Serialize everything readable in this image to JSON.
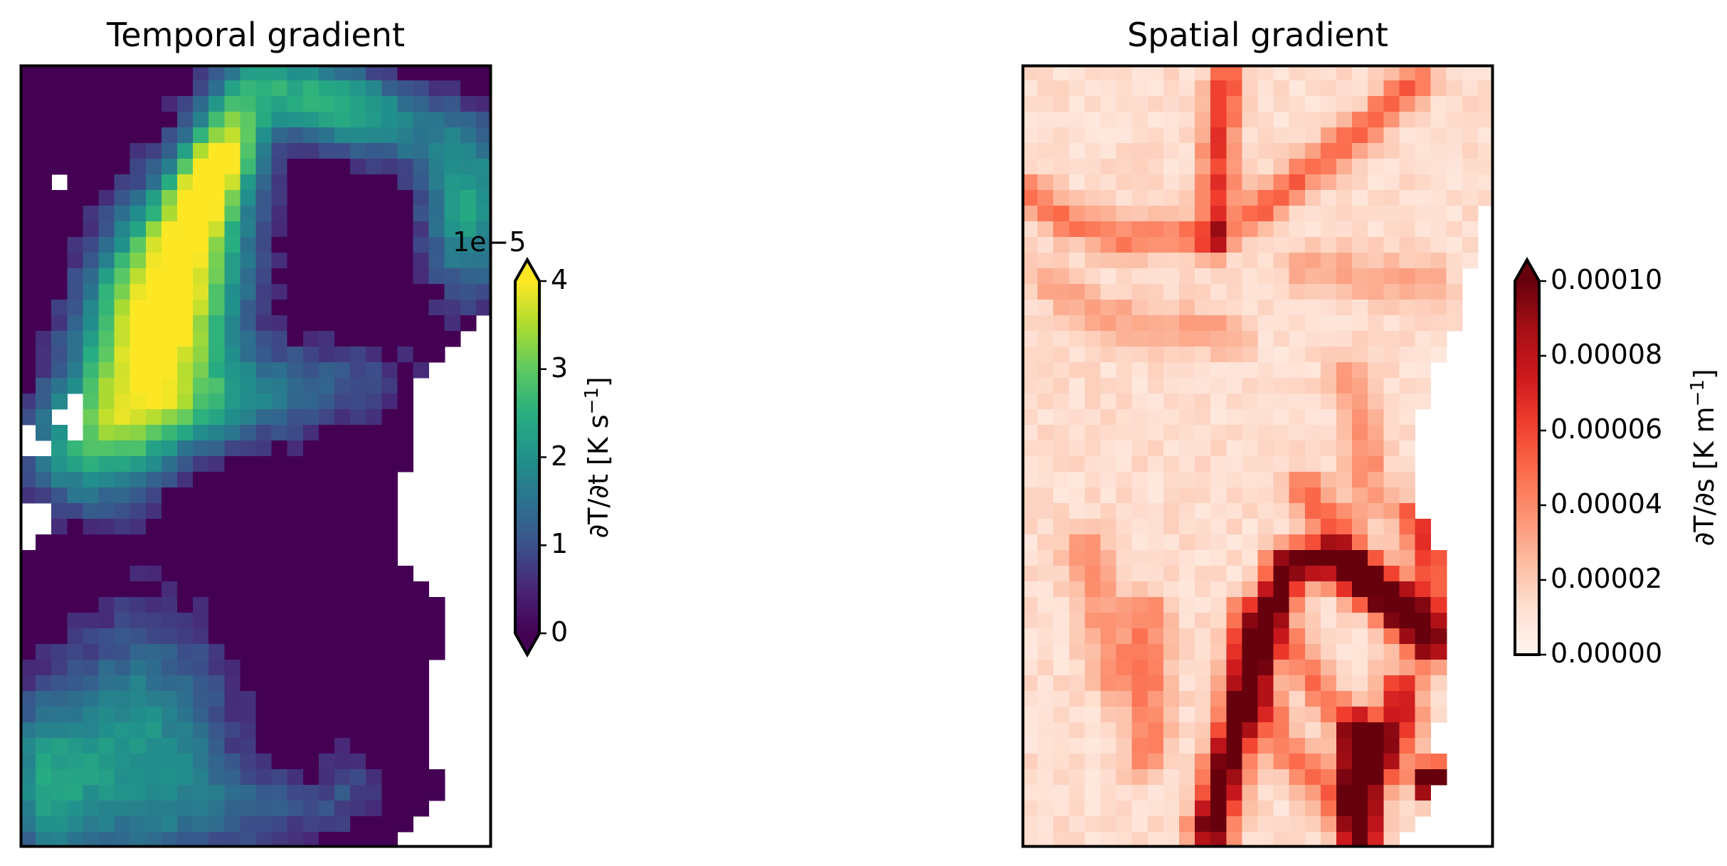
{
  "chart_data": [
    {
      "type": "heatmap",
      "title": "Temporal gradient",
      "colormap": "viridis",
      "grid": false,
      "colorbar": {
        "label_pre": "∂T/∂t [K s",
        "label_sup": "−1",
        "label_post": "]",
        "offset_text": "1e−5",
        "range": [
          0,
          4
        ],
        "ticks": [
          0,
          1,
          2,
          3,
          4
        ],
        "tick_labels": [
          "0",
          "1",
          "2",
          "3",
          "4"
        ],
        "extend": "both"
      },
      "grid_shape": [
        50,
        30
      ],
      "blobs": [
        {
          "x": 9.0,
          "y": 15.5,
          "sx": 3.2,
          "sy": 6.0,
          "amp": 4.6,
          "rot": -0.35
        },
        {
          "x": 12.5,
          "y": 6.5,
          "sx": 1.6,
          "sy": 3.5,
          "amp": 3.3,
          "rot": -0.4
        },
        {
          "x": 20.0,
          "y": 2.5,
          "sx": 5.0,
          "sy": 2.0,
          "amp": 2.6,
          "rot": -0.3
        },
        {
          "x": 28.5,
          "y": 9.5,
          "sx": 2.2,
          "sy": 4.0,
          "amp": 2.2,
          "rot": 0.0
        },
        {
          "x": 13.0,
          "y": 21.5,
          "sx": 8.0,
          "sy": 2.3,
          "amp": 1.7,
          "rot": 0.15
        },
        {
          "x": 4.0,
          "y": 25.5,
          "sx": 3.0,
          "sy": 2.5,
          "amp": 1.2,
          "rot": 0.0
        },
        {
          "x": 8.0,
          "y": 43.5,
          "sx": 4.0,
          "sy": 6.0,
          "amp": 2.0,
          "rot": 0.0
        },
        {
          "x": 1.5,
          "y": 46.0,
          "sx": 2.5,
          "sy": 4.0,
          "amp": 1.8,
          "rot": 0.0
        },
        {
          "x": 16.0,
          "y": 47.5,
          "sx": 4.5,
          "sy": 2.0,
          "amp": 0.9,
          "rot": 0.0
        },
        {
          "x": 21.0,
          "y": 45.5,
          "sx": 1.5,
          "sy": 2.0,
          "amp": 0.6,
          "rot": 0.0
        }
      ],
      "nan_right_edge": [
        30,
        30,
        30,
        30,
        30,
        30,
        30,
        30,
        30,
        30,
        30,
        30,
        30,
        30,
        30,
        30,
        29,
        28,
        27,
        26,
        25,
        25,
        25,
        25,
        25,
        25,
        24,
        24,
        24,
        24,
        24,
        24,
        25,
        26,
        27,
        27,
        27,
        27,
        26,
        26,
        26,
        26,
        26,
        26,
        26,
        27,
        27,
        26,
        25,
        24
      ],
      "nan_cells": [
        [
          7,
          2
        ],
        [
          21,
          3
        ],
        [
          22,
          3
        ],
        [
          23,
          3
        ],
        [
          22,
          2
        ],
        [
          24,
          1
        ],
        [
          24,
          0
        ],
        [
          23,
          0
        ],
        [
          28,
          1
        ],
        [
          28,
          0
        ],
        [
          29,
          0
        ],
        [
          30,
          0
        ],
        [
          29,
          1
        ]
      ]
    },
    {
      "type": "heatmap",
      "title": "Spatial gradient",
      "colormap": "Reds",
      "grid": false,
      "colorbar": {
        "label_pre": "∂T/∂s [K m",
        "label_sup": "−1",
        "label_post": "]",
        "range": [
          0,
          0.0001
        ],
        "ticks": [
          0,
          2e-05,
          4e-05,
          6e-05,
          8e-05,
          0.0001
        ],
        "tick_labels": [
          "0.00000",
          "0.00002",
          "0.00004",
          "0.00006",
          "0.00008",
          "0.00010"
        ],
        "extend": "max"
      },
      "grid_shape": [
        50,
        30
      ],
      "base_level": 1.3e-05,
      "ridges": [
        {
          "points": [
            [
              12,
              49
            ],
            [
              15,
              37
            ],
            [
              17,
              32
            ],
            [
              19.5,
              31.5
            ],
            [
              23,
              34
            ],
            [
              25,
              36
            ],
            [
              26,
              37
            ]
          ],
          "amp": 0.0001,
          "w": 0.9
        },
        {
          "points": [
            [
              21.5,
              49
            ],
            [
              21.5,
              47
            ],
            [
              21.5,
              43
            ]
          ],
          "amp": 0.00013,
          "w": 0.9
        },
        {
          "points": [
            [
              23,
              44.5
            ],
            [
              24,
              42
            ],
            [
              24,
              40
            ]
          ],
          "amp": 7e-05,
          "w": 0.9
        },
        {
          "points": [
            [
              26,
              46
            ],
            [
              26,
              45.5
            ]
          ],
          "amp": 0.00012,
          "w": 0.7
        },
        {
          "points": [
            [
              25,
              29
            ],
            [
              26,
              32
            ],
            [
              26,
              35
            ]
          ],
          "amp": 5e-05,
          "w": 0.9
        },
        {
          "points": [
            [
              13,
              1
            ],
            [
              12.5,
              5
            ],
            [
              12.5,
              11
            ]
          ],
          "amp": 5e-05,
          "w": 0.8
        },
        {
          "points": [
            [
              25,
              1
            ],
            [
              22,
              4
            ],
            [
              18,
              7
            ],
            [
              15,
              9.5
            ]
          ],
          "amp": 4e-05,
          "w": 0.8
        },
        {
          "points": [
            [
              0,
              8
            ],
            [
              3,
              10
            ],
            [
              6,
              11
            ],
            [
              9,
              11
            ],
            [
              12,
              11
            ]
          ],
          "amp": 3.5e-05,
          "w": 0.8
        },
        {
          "points": [
            [
              18,
              27
            ],
            [
              21,
              31
            ],
            [
              24,
              34
            ]
          ],
          "amp": 4e-05,
          "w": 0.8
        },
        {
          "points": [
            [
              14,
              35
            ],
            [
              15,
              40
            ],
            [
              17,
              44
            ],
            [
              20,
              47
            ]
          ],
          "amp": 3.5e-05,
          "w": 0.8
        },
        {
          "points": [
            [
              8,
              35
            ],
            [
              8,
              40
            ],
            [
              8,
              44
            ]
          ],
          "amp": 3e-05,
          "w": 1.0
        },
        {
          "points": [
            [
              4,
              31
            ],
            [
              5,
              35
            ],
            [
              6,
              39
            ]
          ],
          "amp": 2.5e-05,
          "w": 1.0
        },
        {
          "points": [
            [
              2,
              14
            ],
            [
              5,
              16
            ],
            [
              9,
              17
            ],
            [
              13,
              17
            ]
          ],
          "amp": 2e-05,
          "w": 1.0
        },
        {
          "points": [
            [
              18,
              13
            ],
            [
              22,
              13.5
            ],
            [
              26,
              14
            ]
          ],
          "amp": 2e-05,
          "w": 1.0
        },
        {
          "points": [
            [
              21,
              20
            ],
            [
              22,
              24
            ],
            [
              22,
              28
            ]
          ],
          "amp": 2.5e-05,
          "w": 0.9
        },
        {
          "points": [
            [
              17,
              37
            ],
            [
              19,
              40
            ],
            [
              21,
              42
            ]
          ],
          "amp": 3.5e-05,
          "w": 0.8
        }
      ],
      "nan_right_edge": [
        30,
        30,
        30,
        30,
        30,
        30,
        30,
        30,
        30,
        29,
        29,
        29,
        29,
        28,
        28,
        28,
        28,
        27,
        27,
        26,
        26,
        26,
        25,
        25,
        25,
        25,
        25,
        25,
        25,
        26,
        26,
        27,
        27,
        27,
        27,
        27,
        27,
        27,
        27,
        27,
        27,
        27,
        26,
        26,
        27,
        27,
        26,
        26,
        25,
        24
      ],
      "nan_cells": []
    }
  ]
}
